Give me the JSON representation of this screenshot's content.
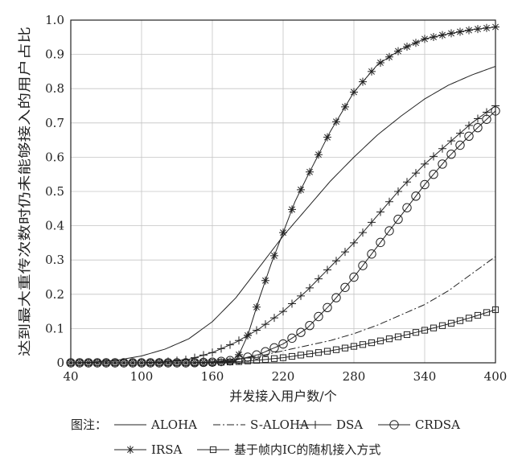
{
  "chart_data": {
    "type": "line",
    "title": "",
    "xlabel": "并发接入用户数/个",
    "ylabel": "达到最大重传次数时仍未能够接入的用户占比",
    "xlim": [
      40,
      400
    ],
    "ylim": [
      0,
      1.0
    ],
    "grid": true,
    "xticks": [
      "40",
      "100",
      "160",
      "220",
      "280",
      "340",
      "400"
    ],
    "yticks": [
      "0",
      "0.1",
      "0.2",
      "0.3",
      "0.4",
      "0.5",
      "0.6",
      "0.7",
      "0.8",
      "0.9",
      "1.0"
    ],
    "legend_prefix": "图注：",
    "legend_position": "bottom",
    "series": [
      {
        "name": "ALOHA",
        "style": "solid",
        "marker": "none",
        "x": [
          40,
          60,
          80,
          100,
          120,
          140,
          160,
          180,
          200,
          220,
          240,
          260,
          280,
          300,
          320,
          340,
          360,
          380,
          400
        ],
        "y": [
          0,
          0.002,
          0.008,
          0.02,
          0.04,
          0.07,
          0.12,
          0.19,
          0.28,
          0.37,
          0.45,
          0.53,
          0.6,
          0.665,
          0.72,
          0.77,
          0.81,
          0.84,
          0.865
        ]
      },
      {
        "name": "S-ALOHA",
        "style": "dashdot",
        "marker": "none",
        "x": [
          40,
          100,
          140,
          160,
          180,
          200,
          220,
          240,
          260,
          280,
          300,
          320,
          340,
          360,
          380,
          400
        ],
        "y": [
          0,
          0,
          0,
          0.003,
          0.01,
          0.02,
          0.035,
          0.05,
          0.065,
          0.085,
          0.11,
          0.14,
          0.17,
          0.21,
          0.26,
          0.31
        ]
      },
      {
        "name": "DSA",
        "style": "solid",
        "marker": "plus",
        "x": [
          40,
          100,
          120,
          140,
          160,
          180,
          200,
          220,
          240,
          260,
          280,
          300,
          320,
          340,
          360,
          380,
          400
        ],
        "y": [
          0,
          0,
          0.003,
          0.01,
          0.03,
          0.06,
          0.1,
          0.15,
          0.21,
          0.28,
          0.35,
          0.43,
          0.51,
          0.58,
          0.64,
          0.7,
          0.75
        ]
      },
      {
        "name": "CRDSA",
        "style": "solid",
        "marker": "circle",
        "x": [
          40,
          100,
          140,
          160,
          180,
          200,
          220,
          240,
          260,
          280,
          300,
          320,
          340,
          360,
          380,
          400
        ],
        "y": [
          0,
          0,
          0,
          0.002,
          0.008,
          0.025,
          0.055,
          0.1,
          0.17,
          0.25,
          0.34,
          0.43,
          0.52,
          0.6,
          0.67,
          0.735
        ]
      },
      {
        "name": "IRSA",
        "style": "solid",
        "marker": "star",
        "x": [
          40,
          100,
          160,
          180,
          190,
          200,
          210,
          220,
          230,
          240,
          260,
          280,
          300,
          320,
          340,
          360,
          380,
          400
        ],
        "y": [
          0,
          0,
          0,
          0.005,
          0.08,
          0.19,
          0.29,
          0.38,
          0.47,
          0.54,
          0.675,
          0.79,
          0.87,
          0.915,
          0.945,
          0.96,
          0.972,
          0.98
        ]
      },
      {
        "name": "基于帧内IC的随机接入方式",
        "style": "solid",
        "marker": "square",
        "x": [
          40,
          100,
          140,
          160,
          180,
          200,
          220,
          240,
          260,
          280,
          300,
          320,
          340,
          360,
          380,
          400
        ],
        "y": [
          0,
          0,
          0,
          0.001,
          0.003,
          0.008,
          0.015,
          0.025,
          0.035,
          0.048,
          0.062,
          0.078,
          0.095,
          0.113,
          0.133,
          0.155
        ]
      }
    ]
  }
}
